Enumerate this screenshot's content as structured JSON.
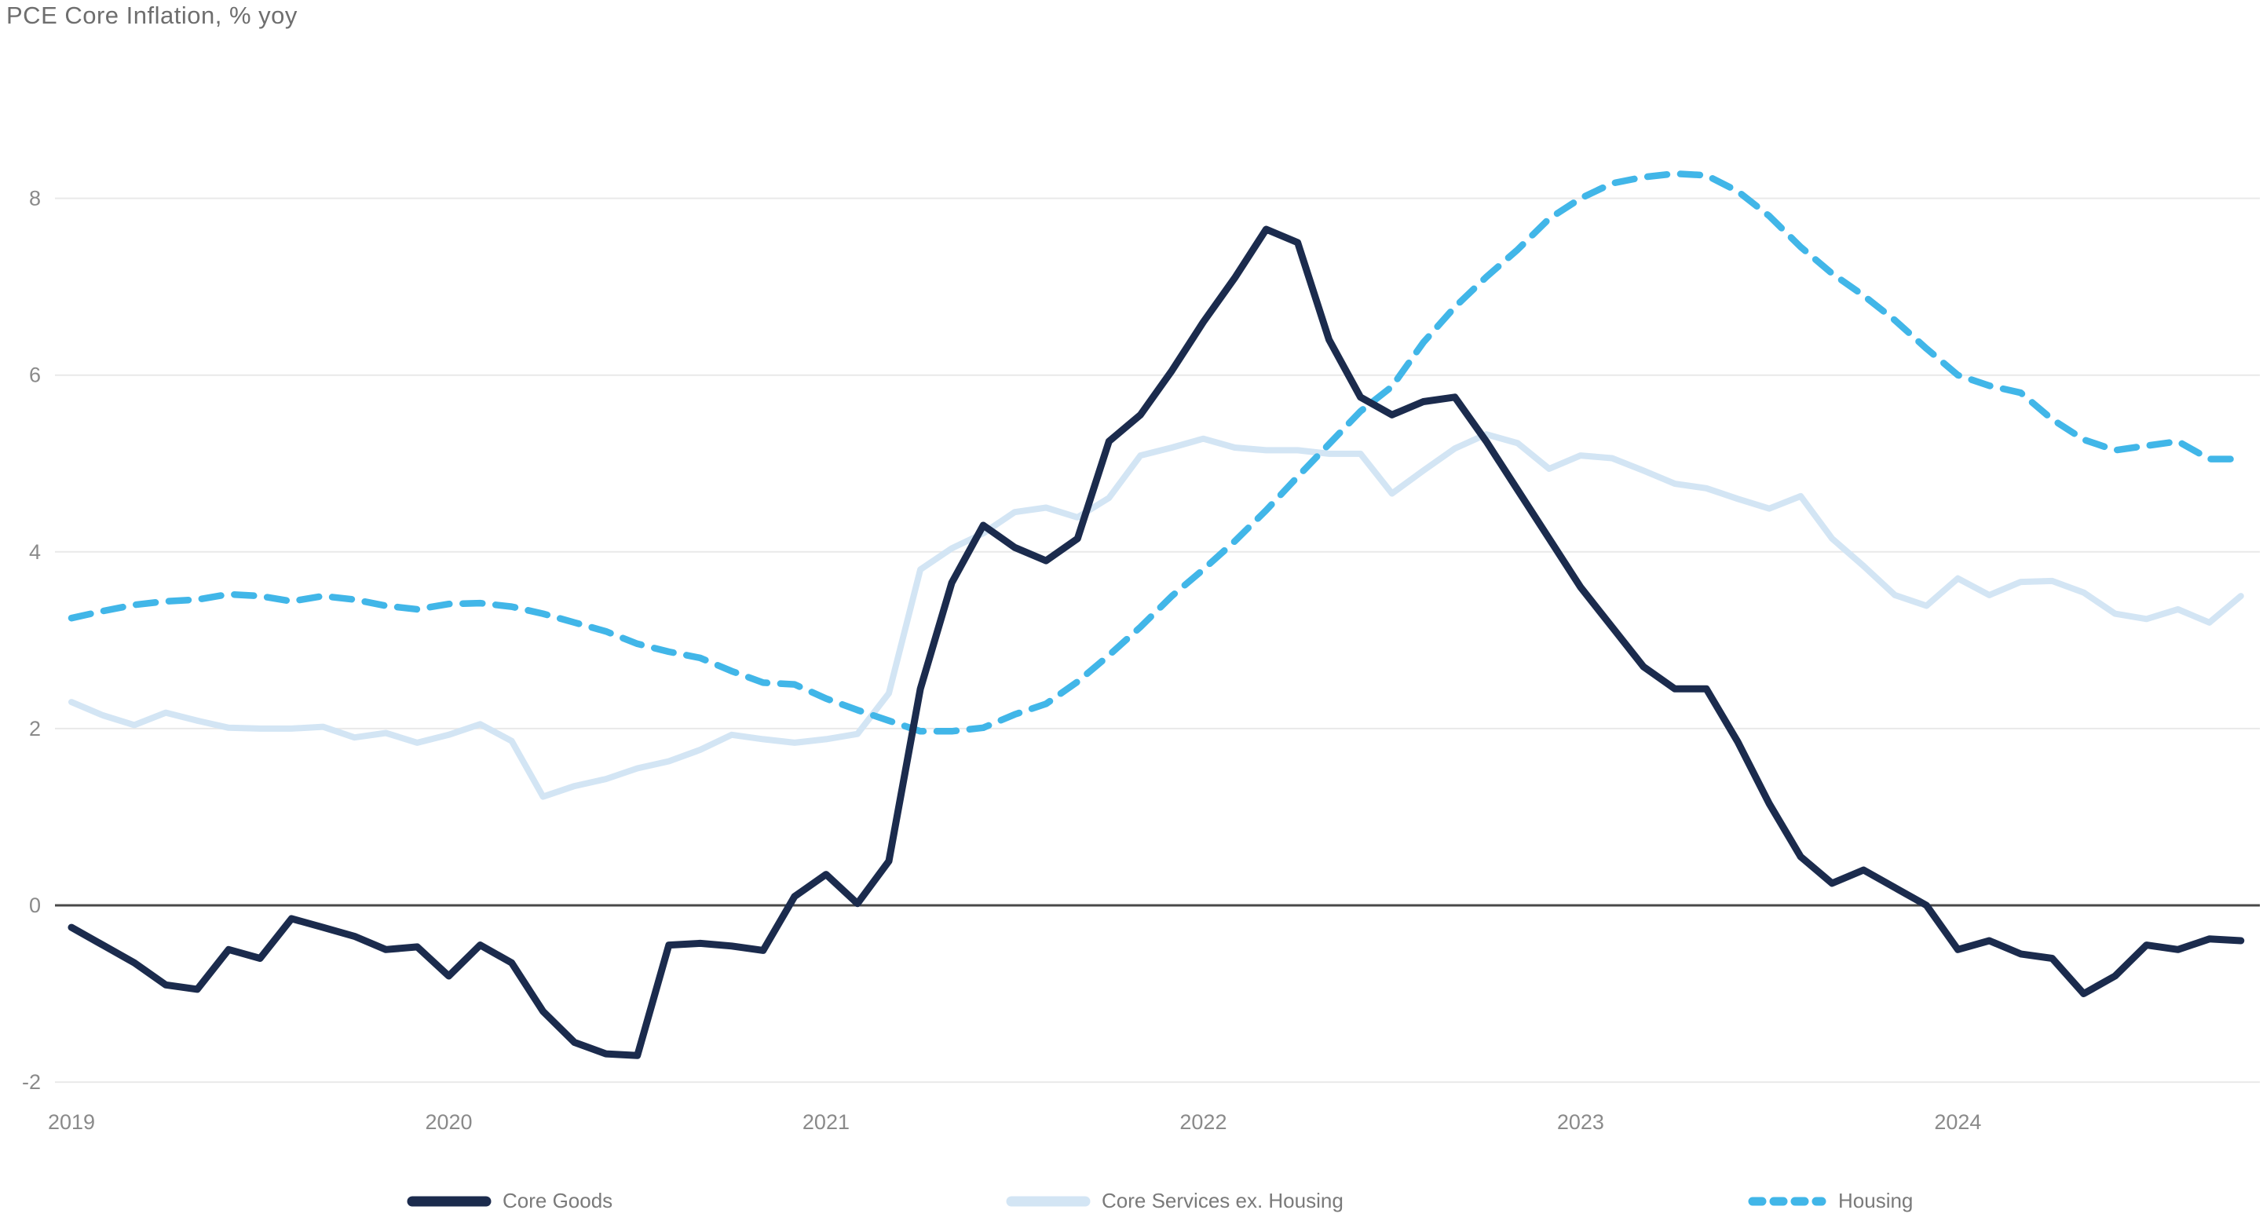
{
  "title": "PCE Core Inflation, % yoy",
  "chart_data": {
    "type": "line",
    "title": "PCE Core Inflation, % yoy",
    "x_unit": "month",
    "x_range": [
      "2019-01",
      "2024-10"
    ],
    "x_tick_labels": [
      "2019",
      "2020",
      "2021",
      "2022",
      "2023",
      "2024"
    ],
    "y_ticks": [
      -2,
      0,
      2,
      4,
      6,
      8
    ],
    "y_tick_labels": [
      "-2",
      "0",
      "2",
      "4",
      "6",
      "8"
    ],
    "ylim": [
      -2.4,
      9.0
    ],
    "grid": "horizontal",
    "zero_line": true,
    "legend_position": "bottom",
    "series": [
      {
        "name": "Core Goods",
        "color": "#1b2b4d",
        "style": "solid",
        "values": [
          -0.25,
          -0.45,
          -0.65,
          -0.9,
          -0.95,
          -0.5,
          -0.6,
          -0.15,
          -0.25,
          -0.35,
          -0.5,
          -0.47,
          -0.8,
          -0.45,
          -0.65,
          -1.2,
          -1.55,
          -1.68,
          -1.7,
          -0.45,
          -0.43,
          -0.46,
          -0.51,
          0.1,
          0.35,
          0.02,
          0.5,
          2.45,
          3.65,
          4.3,
          4.05,
          3.9,
          4.15,
          5.25,
          5.55,
          6.05,
          6.6,
          7.1,
          7.65,
          7.5,
          6.4,
          5.75,
          5.55,
          5.7,
          5.75,
          5.25,
          4.7,
          4.15,
          3.6,
          3.15,
          2.7,
          2.45,
          2.45,
          1.85,
          1.15,
          0.55,
          0.25,
          0.4,
          0.2,
          0.0,
          -0.5,
          -0.4,
          -0.55,
          -0.6,
          -1.0,
          -0.8,
          -0.45,
          -0.5,
          -0.38,
          -0.4
        ]
      },
      {
        "name": "Core Services ex. Housing",
        "color": "#d3e5f4",
        "style": "solid",
        "values": [
          2.3,
          2.15,
          2.04,
          2.18,
          2.09,
          2.01,
          2.0,
          2.0,
          2.02,
          1.9,
          1.95,
          1.84,
          1.93,
          2.05,
          1.86,
          1.23,
          1.35,
          1.43,
          1.55,
          1.63,
          1.76,
          1.93,
          1.88,
          1.84,
          1.88,
          1.94,
          2.4,
          3.8,
          4.04,
          4.21,
          4.45,
          4.5,
          4.39,
          4.61,
          5.09,
          5.18,
          5.28,
          5.18,
          5.15,
          5.15,
          5.11,
          5.11,
          4.66,
          4.92,
          5.17,
          5.33,
          5.23,
          4.94,
          5.09,
          5.06,
          4.92,
          4.77,
          4.72,
          4.6,
          4.49,
          4.63,
          4.15,
          3.84,
          3.51,
          3.39,
          3.7,
          3.51,
          3.66,
          3.67,
          3.54,
          3.3,
          3.24,
          3.35,
          3.2,
          3.5
        ]
      },
      {
        "name": "Housing",
        "color": "#41b6e8",
        "style": "dashed",
        "values": [
          3.25,
          3.33,
          3.4,
          3.44,
          3.46,
          3.52,
          3.5,
          3.44,
          3.5,
          3.46,
          3.39,
          3.35,
          3.41,
          3.42,
          3.38,
          3.3,
          3.2,
          3.1,
          2.96,
          2.87,
          2.8,
          2.65,
          2.52,
          2.5,
          2.34,
          2.21,
          2.09,
          1.97,
          1.97,
          2.01,
          2.16,
          2.28,
          2.53,
          2.83,
          3.15,
          3.5,
          3.8,
          4.12,
          4.47,
          4.85,
          5.22,
          5.59,
          5.87,
          6.37,
          6.77,
          7.11,
          7.42,
          7.77,
          8.0,
          8.17,
          8.24,
          8.28,
          8.26,
          8.08,
          7.8,
          7.45,
          7.15,
          6.9,
          6.62,
          6.3,
          6.0,
          5.88,
          5.8,
          5.5,
          5.27,
          5.15,
          5.2,
          5.25,
          5.05,
          5.05
        ]
      }
    ]
  },
  "colors": {
    "background": "#ffffff",
    "gridline": "#e9e9e9",
    "zero_line": "#484848",
    "title_text": "#6e6e6e",
    "tick_text": "#8a8a8a",
    "legend_text": "#7a7a7a",
    "core_goods": "#1b2b4d",
    "core_services": "#d3e5f4",
    "housing": "#41b6e8"
  }
}
